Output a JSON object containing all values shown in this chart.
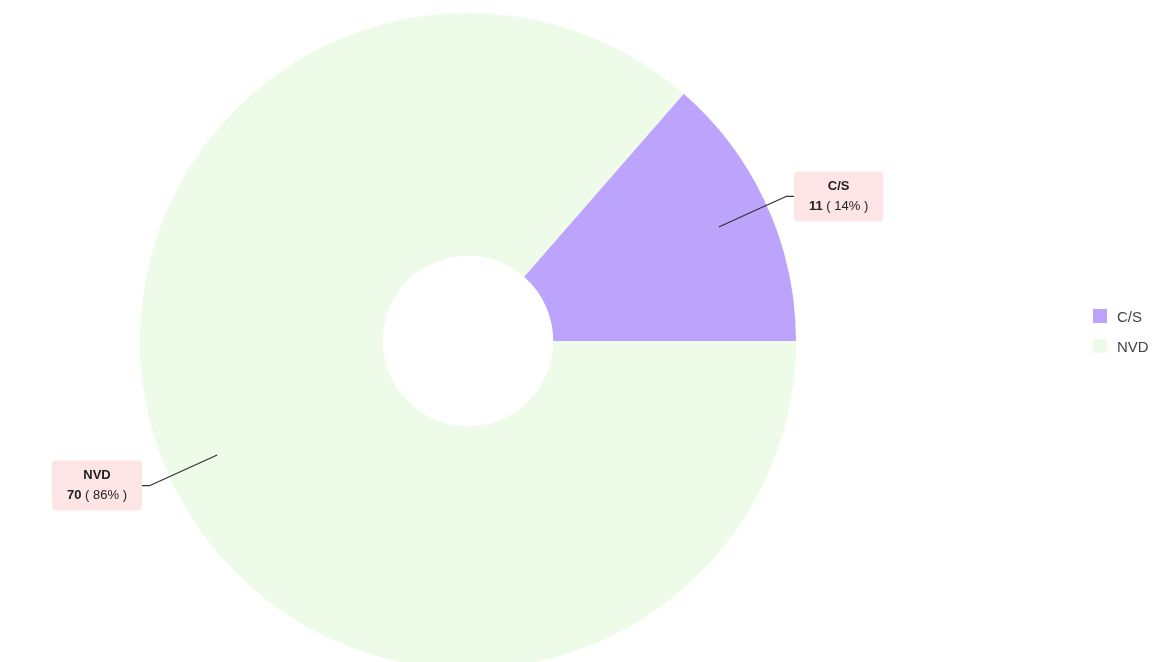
{
  "chart_data": {
    "type": "donut",
    "categories": [
      "C/S",
      "NVD"
    ],
    "values": [
      11,
      70
    ],
    "colors": [
      "#bca3fb",
      "#eefbe8"
    ],
    "value_labels": [
      "11 ( 14% )",
      "70 ( 86% )"
    ],
    "legend": "right"
  }
}
